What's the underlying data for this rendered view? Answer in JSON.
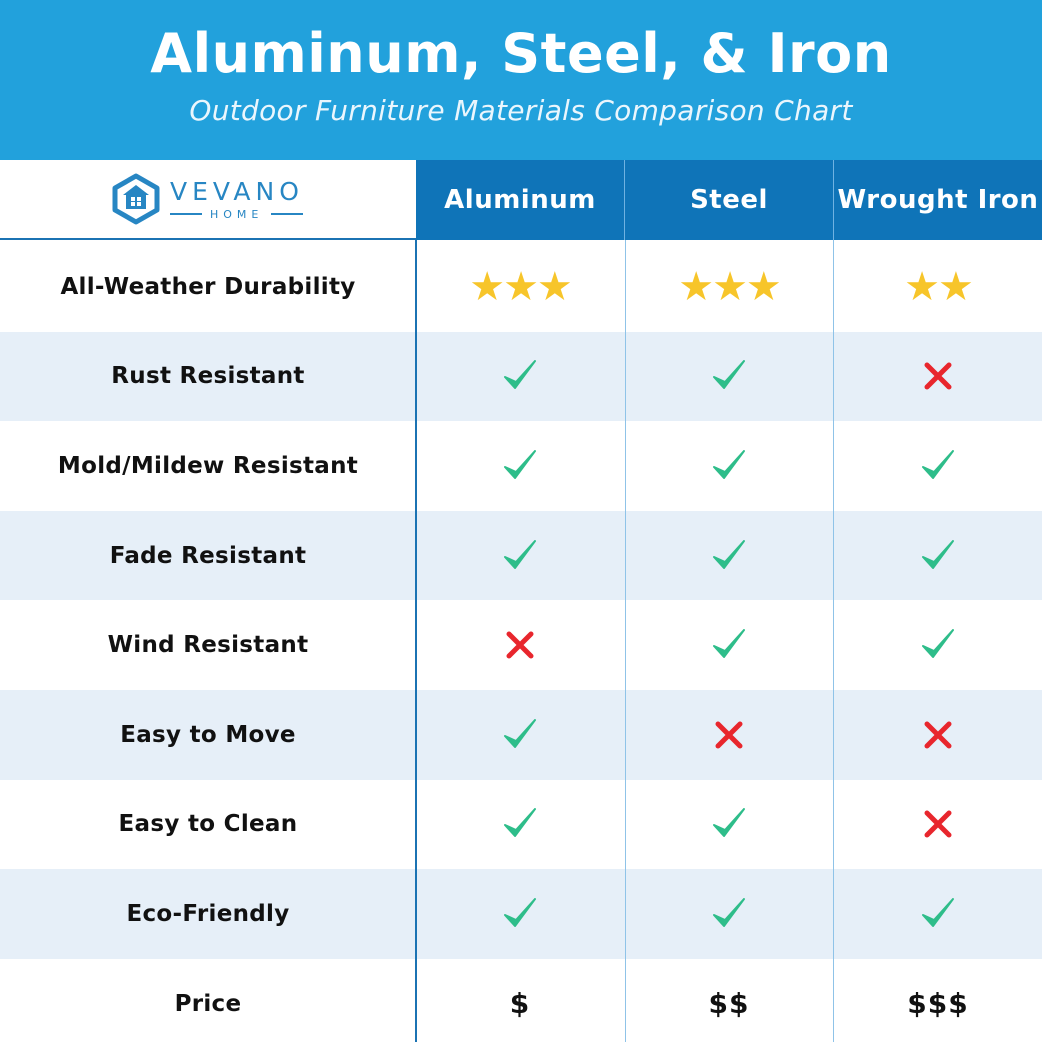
{
  "header": {
    "title": "Aluminum, Steel, & Iron",
    "subtitle": "Outdoor Furniture Materials Comparison Chart"
  },
  "logo": {
    "brand": "VEVANO",
    "sub": "HOME"
  },
  "colors": {
    "banner": "#22a1dc",
    "column_header": "#0f74b8",
    "row_shade": "#e6eff8",
    "check": "#2ebd8a",
    "cross": "#e8262d",
    "star": "#f7c52a"
  },
  "chart_data": {
    "type": "table",
    "columns": [
      "Aluminum",
      "Steel",
      "Wrought Iron"
    ],
    "rows": [
      {
        "label": "All-Weather Durability",
        "kind": "stars",
        "values": [
          3,
          3,
          2
        ]
      },
      {
        "label": "Rust Resistant",
        "kind": "bool",
        "values": [
          true,
          true,
          false
        ]
      },
      {
        "label": "Mold/Mildew Resistant",
        "kind": "bool",
        "values": [
          true,
          true,
          true
        ]
      },
      {
        "label": "Fade Resistant",
        "kind": "bool",
        "values": [
          true,
          true,
          true
        ]
      },
      {
        "label": "Wind Resistant",
        "kind": "bool",
        "values": [
          false,
          true,
          true
        ]
      },
      {
        "label": "Easy to Move",
        "kind": "bool",
        "values": [
          true,
          false,
          false
        ]
      },
      {
        "label": "Easy to Clean",
        "kind": "bool",
        "values": [
          true,
          true,
          false
        ]
      },
      {
        "label": "Eco-Friendly",
        "kind": "bool",
        "values": [
          true,
          true,
          true
        ]
      },
      {
        "label": "Price",
        "kind": "text",
        "values": [
          "$",
          "$$",
          "$$$"
        ]
      }
    ]
  }
}
